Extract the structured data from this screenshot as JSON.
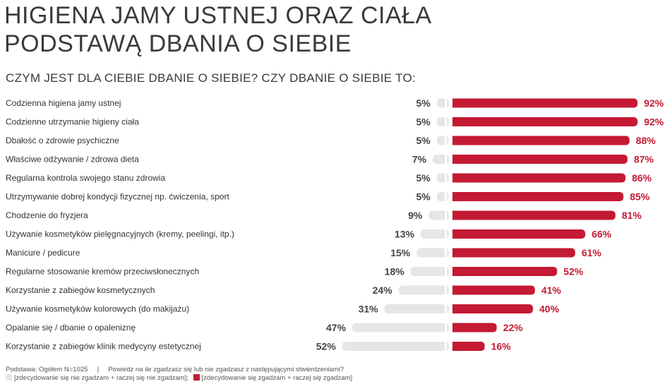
{
  "title_lines": [
    "HIGIENA JAMY USTNEJ ORAZ CIAŁA",
    "PODSTAWĄ DBANIA O SIEBIE"
  ],
  "subtitle": "CZYM JEST DLA CIEBIE DBANIE O SIEBIE? CZY DBANIE O SIEBIE TO:",
  "footer": {
    "base": "Podstawa: Ogółem N=1025",
    "separator": "|",
    "question": "Powiedz na ile zgadzasz się lub nie zgadzasz z następującymi stwierdzeniami?",
    "legend_disagree": "[zdecydowanie się nie zgadzam + raczej się nie zgadzam];",
    "legend_agree": "[zdecydowanie się zgadzam + raczej się zgadzam]"
  },
  "chart_data": {
    "type": "bar",
    "orientation": "horizontal-diverging",
    "value_unit": "%",
    "colors": {
      "disagree": "#e6e6e6",
      "agree": "#c41a33"
    },
    "categories": [
      "Codzienna higiena jamy ustnej",
      "Codzienne utrzymanie higieny ciała",
      "Dbałość o zdrowie psychiczne",
      "Właściwe odżywanie / zdrowa dieta",
      "Regularna kontrola swojego stanu zdrowia",
      "Utrzymywanie dobrej kondycji fizycznej np. ćwiczenia, sport",
      "Chodzenie do fryzjera",
      "Używanie kosmetyków pielęgnacyjnych (kremy, peelingi, itp.)",
      "Manicure / pedicure",
      "Regularne stosowanie kremów przeciwsłonecznych",
      "Korzystanie z zabiegów kosmetycznych",
      "Używanie kosmetyków kolorowych (do makijażu)",
      "Opalanie się / dbanie o opaleniznę",
      "Korzystanie z zabiegów klinik medycyny estetycznej"
    ],
    "series": [
      {
        "name": "[zdecydowanie się nie zgadzam + raczej się nie zgadzam]",
        "values": [
          5,
          5,
          5,
          7,
          5,
          5,
          9,
          13,
          15,
          18,
          24,
          31,
          47,
          52
        ]
      },
      {
        "name": "[zdecydowanie się zgadzam + raczej się zgadzam]",
        "values": [
          92,
          92,
          88,
          87,
          86,
          85,
          81,
          66,
          61,
          52,
          41,
          40,
          22,
          16
        ]
      }
    ]
  }
}
